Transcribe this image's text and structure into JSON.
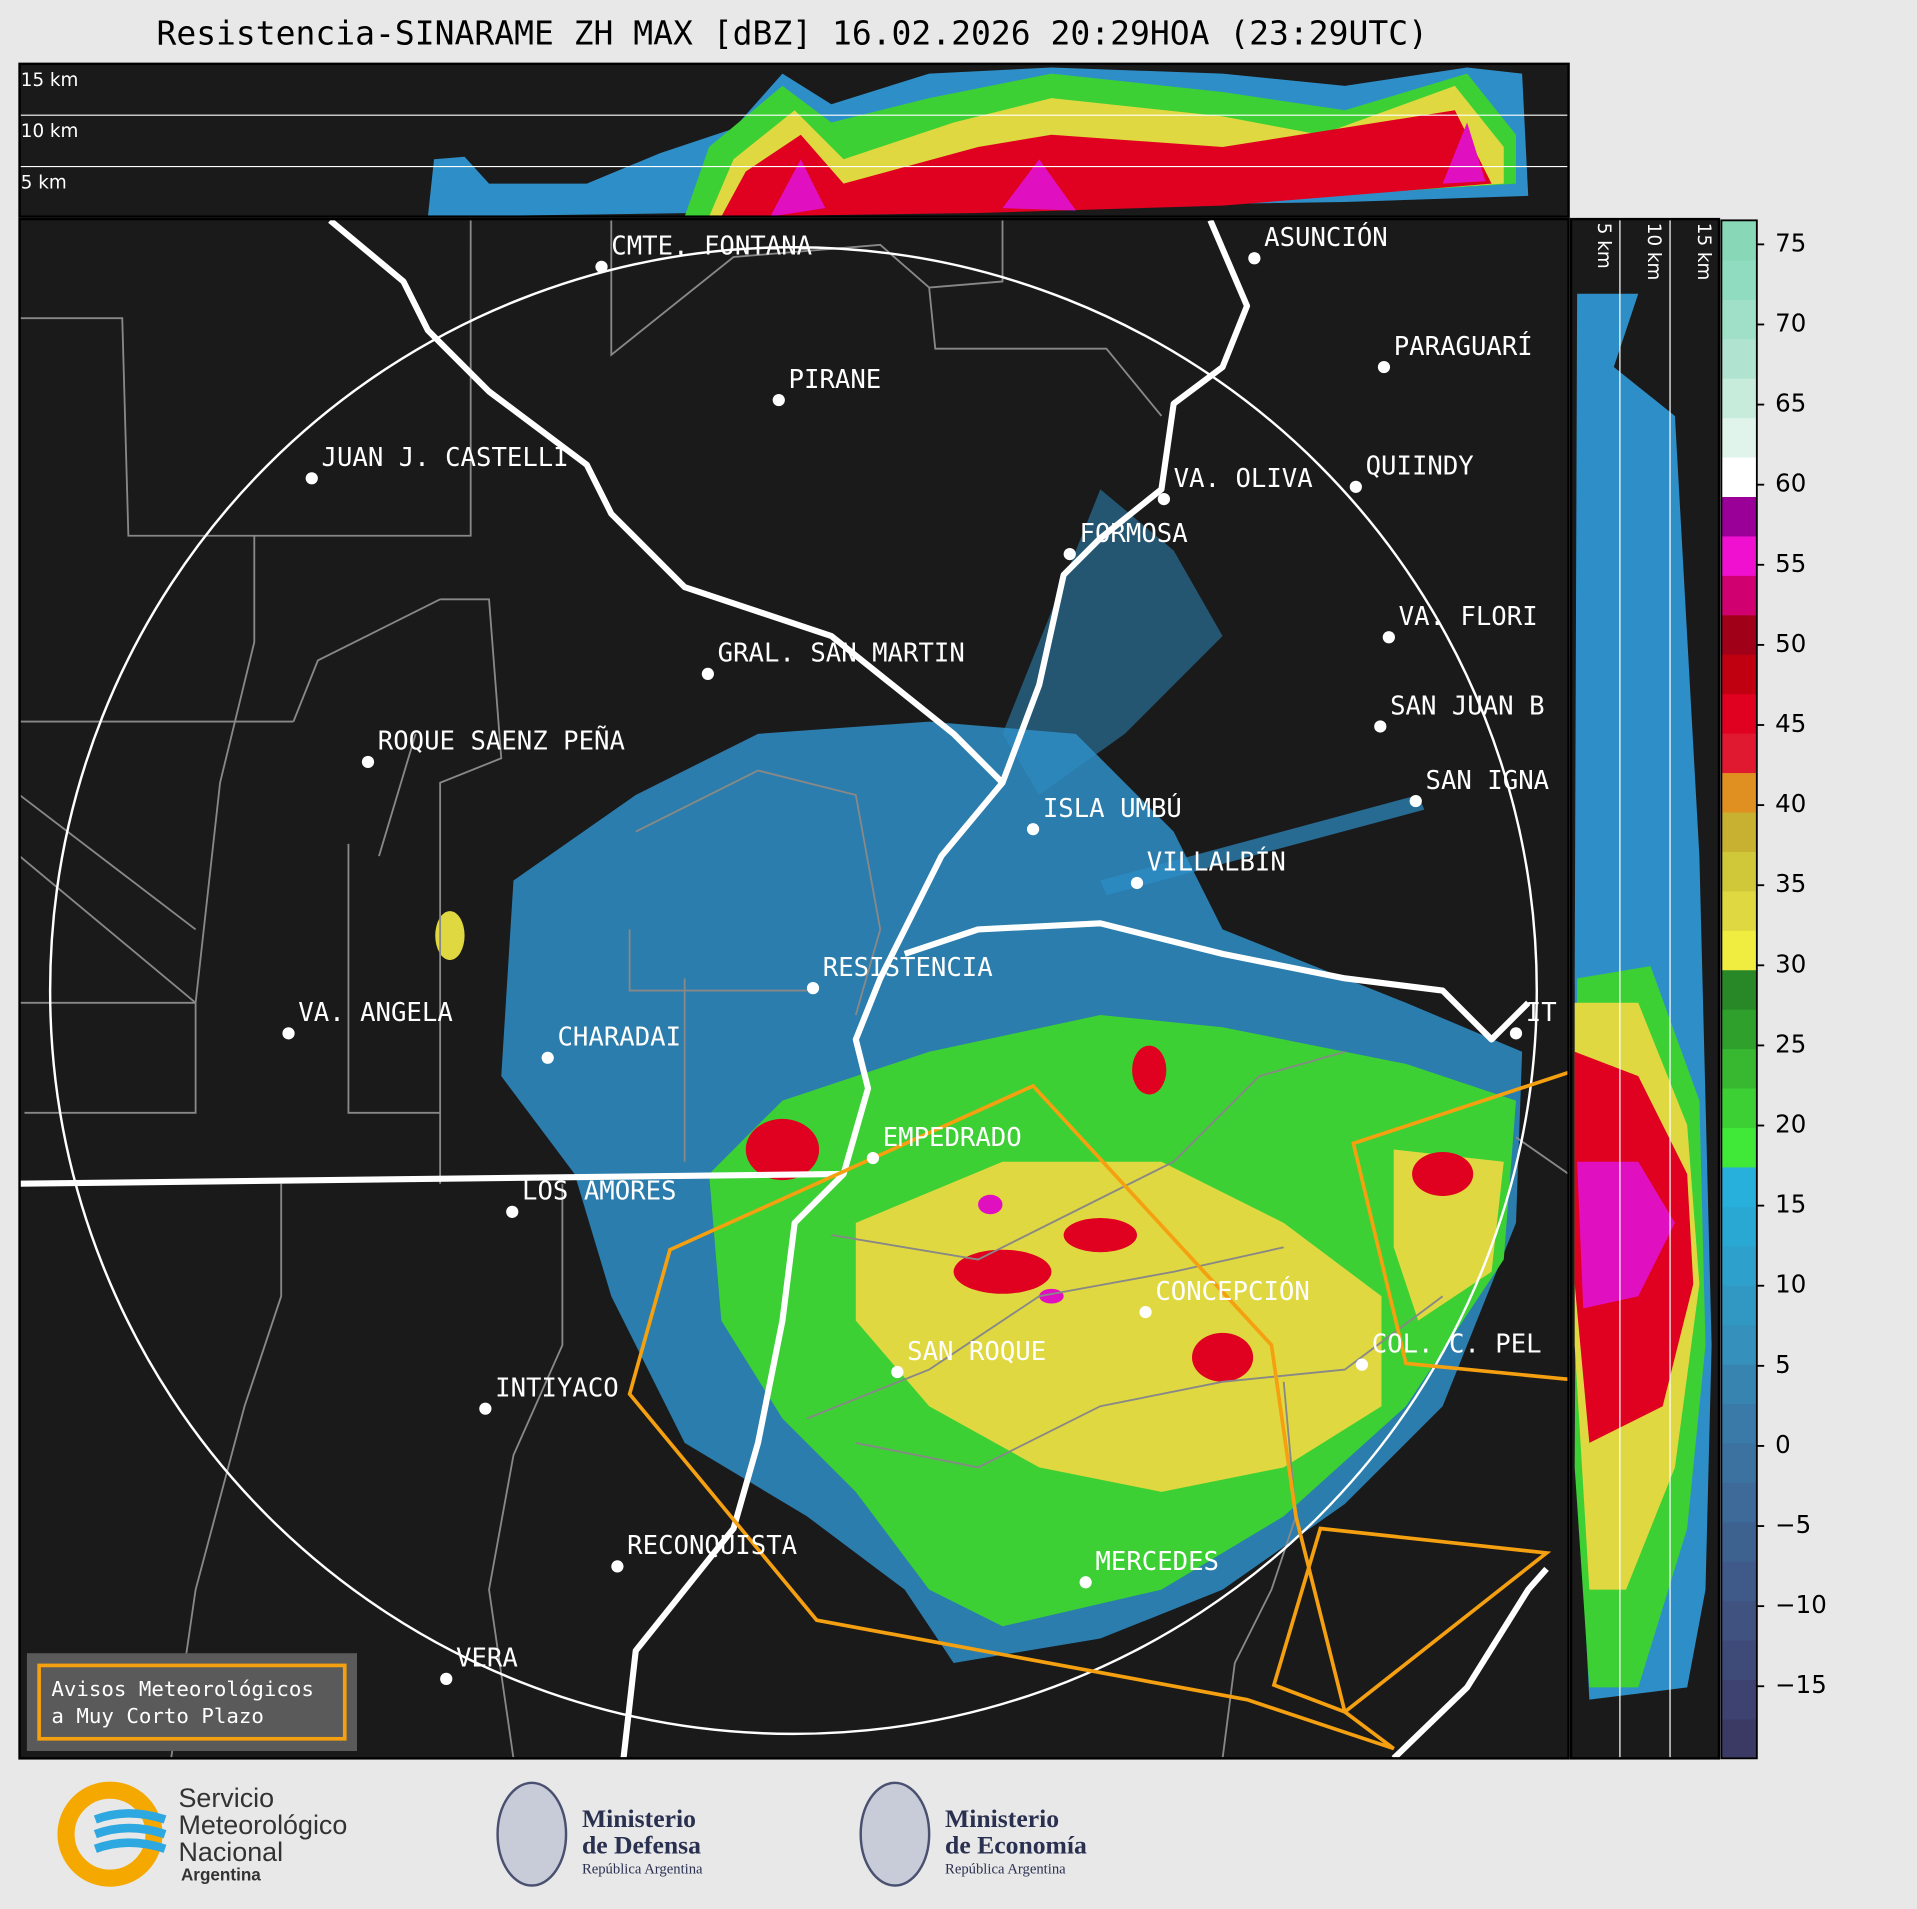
{
  "header": {
    "title": "Resistencia-SINARAME ZH MAX [dBZ] 16.02.2026 20:29HOA (23:29UTC)"
  },
  "cross_section": {
    "top_labels": [
      "15 km",
      "10 km",
      "5 km"
    ],
    "side_labels": [
      "5 km",
      "10 km",
      "15 km"
    ]
  },
  "cities": [
    "CMTE. FONTANA",
    "PIRANE",
    "JUAN J. CASTELLI",
    "ASUNCIÓN",
    "PARAGUARÍ",
    "VA. OLIVA",
    "QUIINDY",
    "FORMOSA",
    "VA. FLORI",
    "GRAL. SAN MARTIN",
    "SAN JUAN B",
    "ROQUE SAENZ PEÑA",
    "SAN IGNA",
    "ISLA UMBÚ",
    "VILLALBÍN",
    "RESISTENCIA",
    "VA. ANGELA",
    "CHARADAI",
    "IT",
    "EMPEDRADO",
    "LOS AMORES",
    "CONCEPCIÓN",
    "COL. C. PEL",
    "SAN ROQUE",
    "INTIYACO",
    "RECONQUISTA",
    "MERCEDES",
    "VERA"
  ],
  "colorbar": {
    "range": [
      -19.5,
      76.5
    ],
    "ticks": [
      75,
      70,
      65,
      60,
      55,
      50,
      45,
      40,
      35,
      30,
      25,
      20,
      15,
      10,
      5,
      0,
      {
        "value": -5,
        "label": "−5"
      },
      {
        "value": -10,
        "label": "−10"
      },
      {
        "value": -15,
        "label": "−15"
      }
    ],
    "colors": [
      "#3b3a64",
      "#3d4270",
      "#3e4a78",
      "#3f5280",
      "#3f5a88",
      "#3e6290",
      "#3d6a98",
      "#3c72a0",
      "#3a7aa8",
      "#3884b0",
      "#3590bc",
      "#3198c4",
      "#2ea0cc",
      "#2aa8d4",
      "#28b0dc",
      "#40e838",
      "#3cd034",
      "#38b830",
      "#30a02c",
      "#288828",
      "#f0ec40",
      "#e0d840",
      "#d0c838",
      "#c8b030",
      "#e09020",
      "#e01830",
      "#e00020",
      "#c00010",
      "#a00018",
      "#d00070",
      "#f010d0",
      "#9a0098",
      "#ffffff",
      "#e0f4ec",
      "#c8ecdc",
      "#b0e4d0",
      "#a0e0c8",
      "#90dcc0",
      "#88d8b8"
    ]
  },
  "warning_box": {
    "lines": [
      "Avisos Meteorológicos",
      "a Muy Corto Plazo"
    ]
  },
  "footer": {
    "smn": [
      "Servicio",
      "Meteorológico",
      "Nacional",
      "Argentina"
    ],
    "defensa": [
      "Ministerio",
      "de Defensa",
      "República Argentina"
    ],
    "economia": [
      "Ministerio",
      "de Economía",
      "República Argentina"
    ]
  }
}
